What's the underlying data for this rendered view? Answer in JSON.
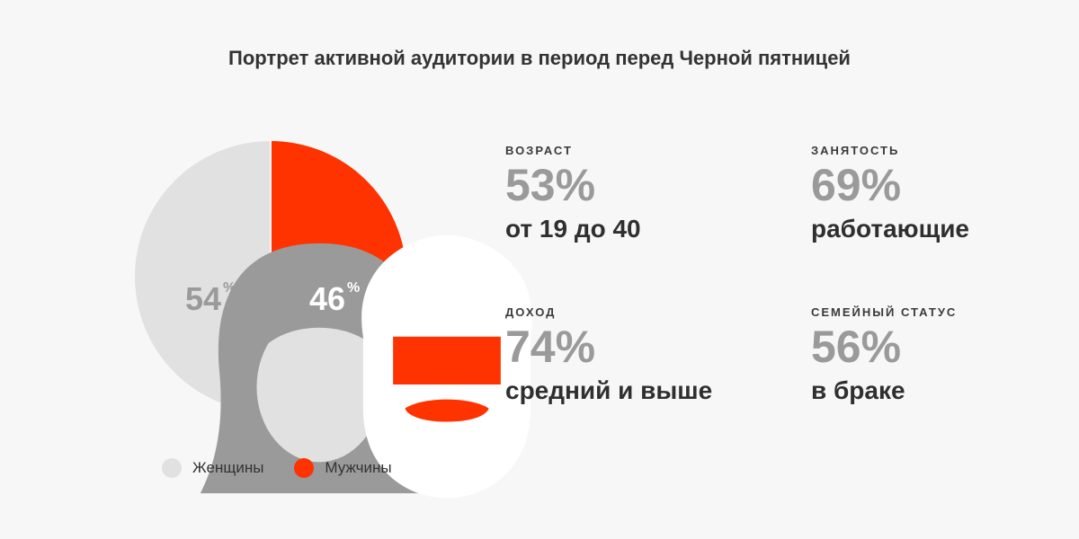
{
  "title": "Портрет активной аудитории в период перед Черной пятницей",
  "colors": {
    "women": "#e1e1e1",
    "men": "#ff3300",
    "background": "#f7f7f7"
  },
  "chart_data": {
    "type": "pie",
    "slices": [
      {
        "name": "Женщины",
        "value": 54,
        "label": "54",
        "unit": "%",
        "color": "#e1e1e1",
        "icon": "woman-icon"
      },
      {
        "name": "Мужчины",
        "value": 46,
        "label": "46",
        "unit": "%",
        "color": "#ff3300",
        "icon": "man-icon"
      }
    ],
    "legend_position": "bottom-left"
  },
  "stats": [
    {
      "label": "ВОЗРАСТ",
      "value": "53%",
      "desc": "от 19 до 40"
    },
    {
      "label": "ЗАНЯТОСТЬ",
      "value": "69%",
      "desc": "работающие"
    },
    {
      "label": "ДОХОД",
      "value": "74%",
      "desc": "средний и выше"
    },
    {
      "label": "СЕМЕЙНЫЙ СТАТУС",
      "value": "56%",
      "desc": "в браке"
    }
  ]
}
